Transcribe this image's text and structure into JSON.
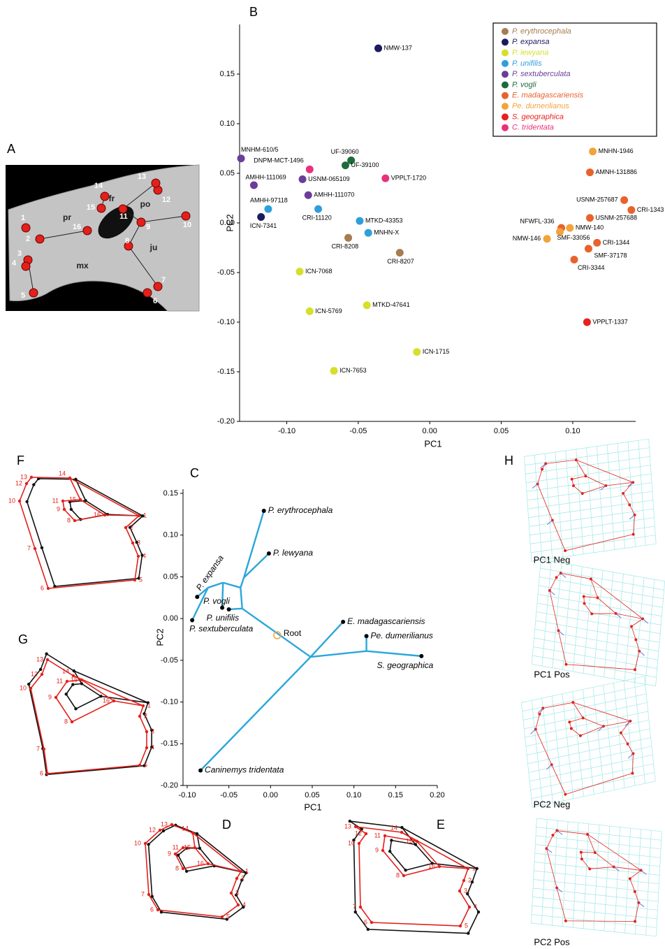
{
  "panel_labels": [
    "A",
    "B",
    "C",
    "D",
    "E",
    "F",
    "G",
    "H"
  ],
  "skull": {
    "regions": [
      "pr",
      "fr",
      "po",
      "mx",
      "ju"
    ]
  },
  "landmarks": [
    "1",
    "2",
    "3",
    "4",
    "5",
    "6",
    "7",
    "8",
    "9",
    "10",
    "11",
    "12",
    "13",
    "14",
    "15",
    "16"
  ],
  "deformation": {
    "captions": [
      "PC1 Neg",
      "PC1 Pos",
      "PC2 Neg",
      "PC2 Pos"
    ]
  },
  "chart_data": [
    {
      "type": "scatter",
      "xlabel": "PC1",
      "ylabel": "PC2",
      "legend": "upper right",
      "xlim": [
        -0.133,
        0.144
      ],
      "ylim": [
        -0.2,
        0.2
      ],
      "xticks": [
        {
          "value": -0.1,
          "label": "-0.10"
        },
        -0.05,
        {
          "value": 0,
          "label": "0.00"
        },
        0.05,
        {
          "value": 0.1,
          "label": "0.10"
        }
      ],
      "yticks": [
        0.15,
        {
          "value": 0.1,
          "label": "0.10"
        },
        0.05,
        {
          "value": 0,
          "label": "0.00"
        },
        -0.05,
        {
          "value": -0.1,
          "label": "-0.10"
        },
        -0.15,
        {
          "value": -0.2,
          "label": "-0.20"
        }
      ],
      "series": [
        {
          "name": "P. erythrocephala",
          "color": "#a67c52",
          "x": [
            -0.057,
            -0.021
          ],
          "y": [
            -0.015,
            -0.03
          ],
          "labels": [
            "CRI-8208",
            "CRI-8207"
          ]
        },
        {
          "name": "P. expansa",
          "color": "#1b1b5e",
          "x": [
            -0.036,
            -0.118
          ],
          "y": [
            0.176,
            0.006
          ],
          "labels": [
            "NMW-137",
            "ICN-7341"
          ]
        },
        {
          "name": "P. lewyana",
          "color": "#d6df2a",
          "x": [
            -0.091,
            -0.084,
            -0.044,
            -0.009,
            -0.067
          ],
          "y": [
            -0.049,
            -0.089,
            -0.083,
            -0.13,
            -0.149
          ],
          "labels": [
            "ICN-7068",
            "ICN-5769",
            "MTKD-47641",
            "ICN-1715",
            "ICN-7653"
          ]
        },
        {
          "name": "P. unifilis",
          "color": "#2f9fdb",
          "x": [
            -0.113,
            -0.078,
            -0.049,
            -0.043
          ],
          "y": [
            0.014,
            0.014,
            0.002,
            -0.01
          ],
          "labels": [
            "AMHH-97118",
            "CRI-11120",
            "MTKD-43353",
            "MNHN-X"
          ]
        },
        {
          "name": "P. sextuberculata",
          "color": "#6b3d9a",
          "x": [
            -0.132,
            -0.123,
            -0.089,
            -0.085
          ],
          "y": [
            0.065,
            0.038,
            0.044,
            0.028
          ],
          "labels": [
            "MNHM-610/5",
            "AMHH-111069",
            "USNM-065109",
            "AMHH-111070"
          ]
        },
        {
          "name": "P. vogli",
          "color": "#1d6b3c",
          "x": [
            -0.055,
            -0.059
          ],
          "y": [
            0.063,
            0.058
          ],
          "labels": [
            "UF-39060",
            "UF-39100"
          ]
        },
        {
          "name": "E. madagascariensis",
          "color": "#e8622c",
          "x": [
            0.112,
            0.136,
            0.141,
            0.112,
            0.092,
            0.117,
            0.111,
            0.101
          ],
          "y": [
            0.051,
            0.023,
            0.013,
            0.005,
            -0.005,
            -0.02,
            -0.026,
            -0.037
          ],
          "labels": [
            "AMNH-131886",
            "USNM-257687",
            "CRI-1343",
            "USNM-257688",
            "NFWFL-336",
            "CRI-1344",
            "SMF-37178",
            "CRI-3344"
          ]
        },
        {
          "name": "Pe. dumerilianus",
          "color": "#f2a43a",
          "x": [
            0.114,
            0.098,
            0.091,
            0.082
          ],
          "y": [
            0.072,
            -0.005,
            -0.009,
            -0.016
          ],
          "labels": [
            "MNHN-1946",
            "NMW-140",
            "SMF-33056",
            "NMW-146"
          ]
        },
        {
          "name": "S. geographica",
          "color": "#e8211c",
          "x": [
            0.11
          ],
          "y": [
            -0.1
          ],
          "labels": [
            "VPPLT-1337"
          ]
        },
        {
          "name": "C. tridentata",
          "color": "#e8317c",
          "x": [
            -0.084,
            -0.031
          ],
          "y": [
            0.054,
            0.045
          ],
          "labels": [
            "DNPM-MCT-1496",
            "VPPLT-1720"
          ]
        }
      ]
    },
    {
      "type": "phylomorphospace",
      "xlabel": "PC1",
      "ylabel": "PC2",
      "color": "#2aa6dc",
      "xlim": [
        -0.105,
        0.2
      ],
      "ylim": [
        -0.2,
        0.155
      ],
      "xticks": [
        {
          "value": -0.1,
          "label": "-0.10"
        },
        -0.05,
        {
          "value": 0,
          "label": "0.00"
        },
        0.05,
        {
          "value": 0.1,
          "label": "0.10"
        },
        0.15,
        {
          "value": 0.2,
          "label": "0.20"
        }
      ],
      "yticks": [
        0.15,
        {
          "value": 0.1,
          "label": "0.10"
        },
        0.05,
        {
          "value": 0,
          "label": "0.00"
        },
        -0.05,
        {
          "value": -0.1,
          "label": "-0.10"
        },
        -0.15,
        {
          "value": -0.2,
          "label": "-0.20"
        }
      ],
      "labels": [
        "P. erythrocephala",
        "P. lewyana",
        "P. expansa",
        "P. vogli",
        "P. unifilis",
        "P. sextuberculata",
        "E. madagascariensis",
        "Pe. dumerilianus",
        "S. geographica",
        "Caninemys tridentata"
      ],
      "x": [
        -0.008,
        -0.002,
        -0.088,
        -0.058,
        -0.05,
        -0.094,
        0.087,
        0.115,
        0.181,
        -0.084
      ],
      "y": [
        0.129,
        0.078,
        0.026,
        0.013,
        0.011,
        -0.002,
        -0.004,
        -0.021,
        -0.045,
        -0.182
      ],
      "root": {
        "label": "Root",
        "x": 0.008,
        "y": -0.02
      },
      "branches": [
        {
          "x": [
            -0.084,
            0.048
          ],
          "y": [
            -0.182,
            -0.046
          ]
        },
        {
          "x": [
            0.048,
            0.087
          ],
          "y": [
            -0.046,
            -0.004
          ]
        },
        {
          "x": [
            0.048,
            0.115
          ],
          "y": [
            -0.046,
            -0.039
          ]
        },
        {
          "x": [
            0.115,
            0.115
          ],
          "y": [
            -0.039,
            -0.021
          ]
        },
        {
          "x": [
            0.115,
            0.181
          ],
          "y": [
            -0.039,
            -0.045
          ]
        },
        {
          "x": [
            0.048,
            -0.034
          ],
          "y": [
            -0.046,
            0.012
          ]
        },
        {
          "x": [
            -0.034,
            -0.05
          ],
          "y": [
            0.012,
            0.011
          ]
        },
        {
          "x": [
            -0.034,
            -0.036
          ],
          "y": [
            0.012,
            0.037
          ]
        },
        {
          "x": [
            -0.036,
            -0.032
          ],
          "y": [
            0.037,
            0.049
          ]
        },
        {
          "x": [
            -0.032,
            -0.008
          ],
          "y": [
            0.049,
            0.129
          ]
        },
        {
          "x": [
            -0.032,
            -0.002
          ],
          "y": [
            0.049,
            0.078
          ]
        },
        {
          "x": [
            -0.036,
            -0.057
          ],
          "y": [
            0.037,
            0.043
          ]
        },
        {
          "x": [
            -0.057,
            -0.058
          ],
          "y": [
            0.043,
            0.013
          ]
        },
        {
          "x": [
            -0.057,
            -0.075
          ],
          "y": [
            0.043,
            0.037
          ]
        },
        {
          "x": [
            -0.075,
            -0.088
          ],
          "y": [
            0.037,
            0.026
          ]
        },
        {
          "x": [
            -0.075,
            -0.094
          ],
          "y": [
            0.037,
            -0.002
          ]
        }
      ]
    }
  ]
}
